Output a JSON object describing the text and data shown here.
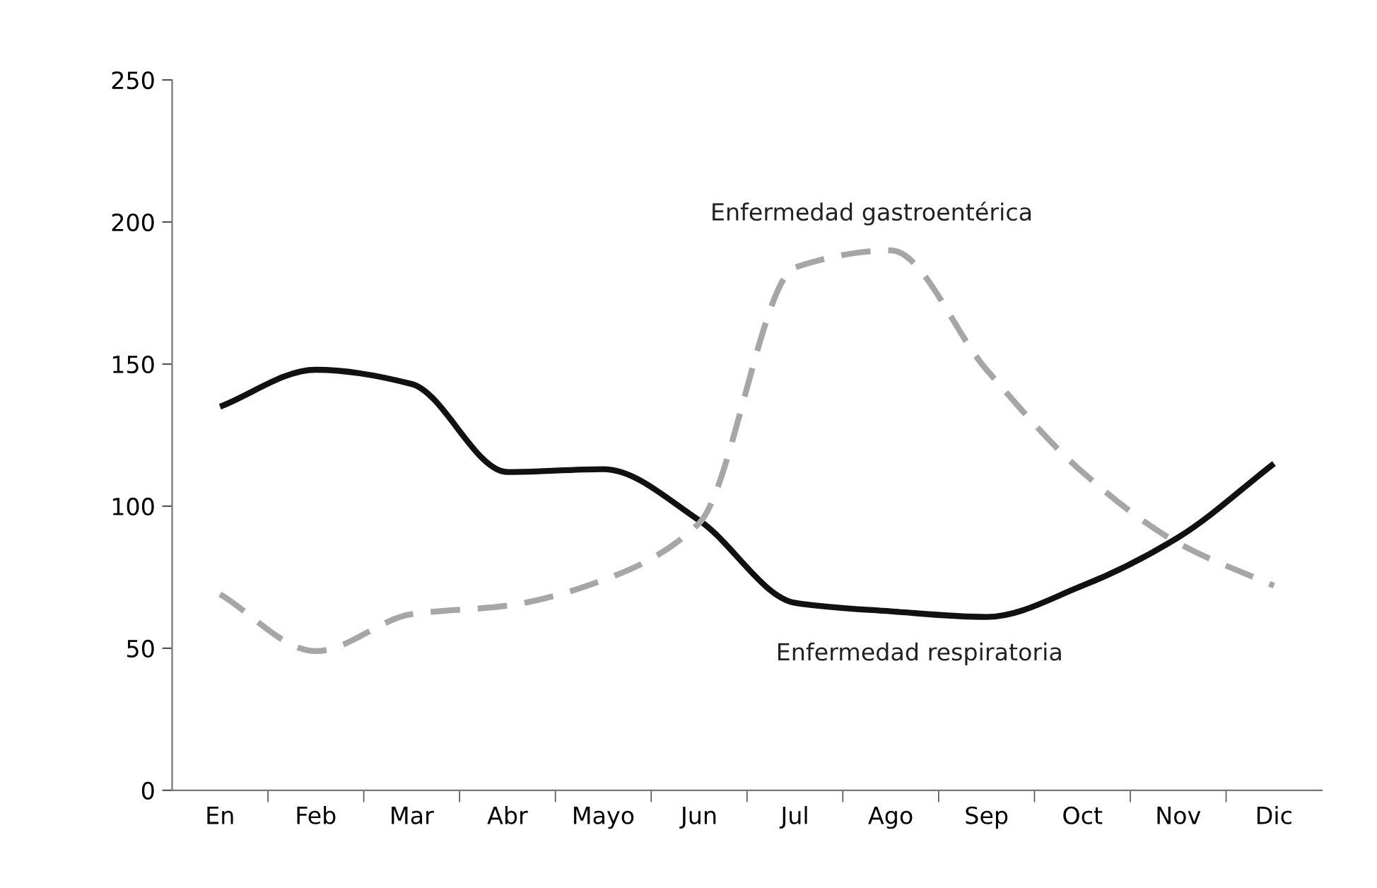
{
  "chart_data": {
    "type": "line",
    "categories": [
      "En",
      "Feb",
      "Mar",
      "Abr",
      "Mayo",
      "Jun",
      "Jul",
      "Ago",
      "Sep",
      "Oct",
      "Nov",
      "Dic"
    ],
    "series": [
      {
        "name": "Enfermedad respiratoria",
        "color": "#111111",
        "line_style": "solid",
        "values": [
          135,
          148,
          143,
          112,
          113,
          95,
          66,
          63,
          61,
          72,
          89,
          115
        ]
      },
      {
        "name": "Enfermedad gastroentérica",
        "color": "#a6a6a6",
        "line_style": "dashed",
        "values": [
          69,
          49,
          62,
          65,
          74,
          94,
          184,
          190,
          148,
          112,
          87,
          72
        ]
      }
    ],
    "ylim": [
      0,
      250
    ],
    "yticks": [
      0,
      50,
      100,
      150,
      200,
      250
    ],
    "grid": false,
    "legend": false,
    "marker": "none"
  }
}
